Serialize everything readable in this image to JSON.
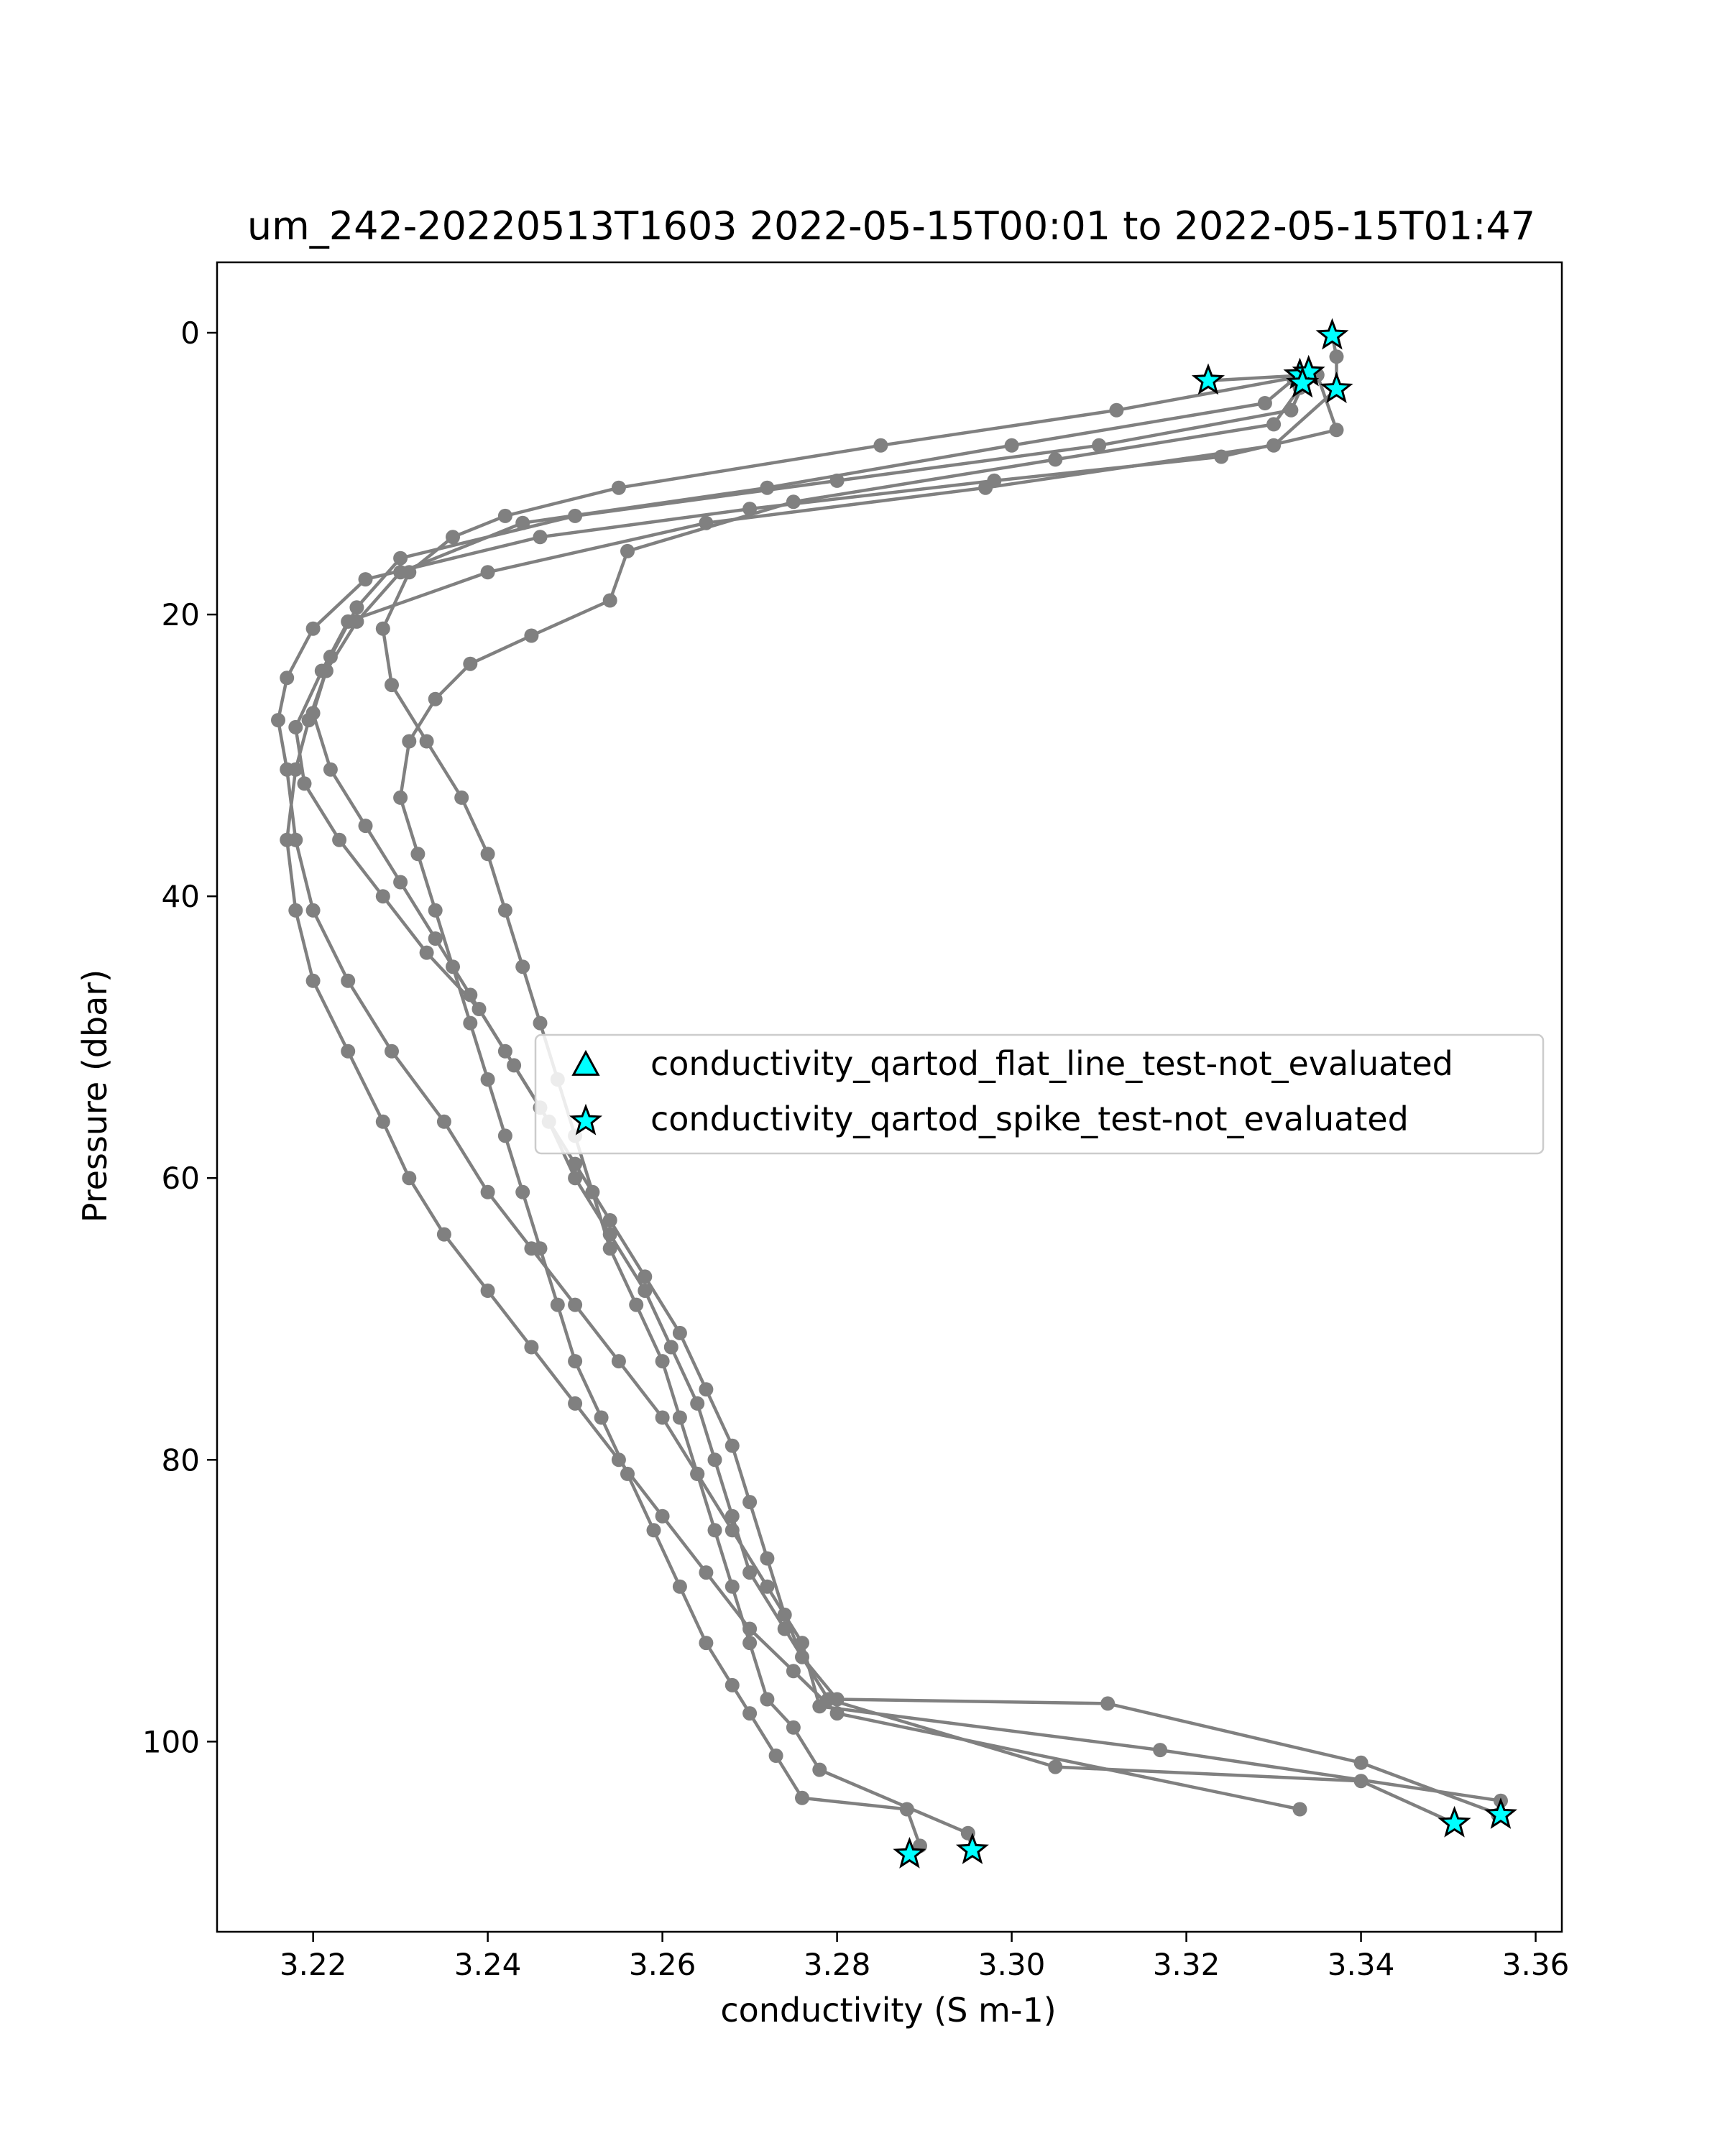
{
  "chart_data": {
    "type": "line",
    "title": "um_242-20220513T1603 2022-05-15T00:01 to 2022-05-15T01:47",
    "xlabel": "conductivity (S m-1)",
    "ylabel": "Pressure (dbar)",
    "xlim": [
      3.209,
      3.363
    ],
    "ylim": [
      113.5,
      -5.0
    ],
    "y_inverted": true,
    "grid": false,
    "x_ticks": [
      3.22,
      3.24,
      3.26,
      3.28,
      3.3,
      3.32,
      3.34,
      3.36
    ],
    "x_tick_labels": [
      "3.22",
      "3.24",
      "3.26",
      "3.28",
      "3.30",
      "3.32",
      "3.34",
      "3.36"
    ],
    "y_ticks": [
      0,
      20,
      40,
      60,
      80,
      100
    ],
    "y_tick_labels": [
      "0",
      "20",
      "40",
      "60",
      "80",
      "100"
    ],
    "line_color": "#808080",
    "flag_fill": "#00ffff",
    "legend_position": "center-right",
    "legend": [
      {
        "marker": "triangle",
        "label": "conductivity_qartod_flat_line_test-not_evaluated"
      },
      {
        "marker": "star",
        "label": "conductivity_qartod_spike_test-not_evaluated"
      }
    ],
    "series": [
      {
        "x": [
          3.3367,
          3.3372,
          3.3372,
          3.33,
          3.297,
          3.265,
          3.24,
          3.224,
          3.221,
          3.218,
          3.219,
          3.223,
          3.228,
          3.233,
          3.239,
          3.243,
          3.247,
          3.25,
          3.254,
          3.258,
          3.261,
          3.264,
          3.266,
          3.268,
          3.27,
          3.274,
          3.279,
          3.305,
          3.34,
          3.3507
        ],
        "y": [
          0.2,
          1.7,
          4.0,
          8.0,
          11.0,
          13.5,
          17.0,
          20.5,
          24.0,
          28.0,
          32.0,
          36.0,
          40.0,
          44.0,
          48.0,
          52.0,
          56.0,
          60.0,
          64.0,
          68.0,
          72.0,
          76.0,
          80.0,
          84.0,
          88.0,
          92.0,
          97.0,
          101.8,
          102.8,
          105.8
        ]
      },
      {
        "x": [
          3.335,
          3.3372,
          3.324,
          3.298,
          3.27,
          3.246,
          3.226,
          3.22,
          3.217,
          3.216,
          3.217,
          3.218,
          3.22,
          3.224,
          3.229,
          3.235,
          3.24,
          3.245,
          3.25,
          3.255,
          3.26,
          3.264,
          3.268,
          3.272,
          3.276,
          3.278,
          3.317,
          3.356,
          3.3557
        ],
        "y": [
          3.0,
          6.9,
          8.8,
          10.5,
          12.5,
          14.5,
          17.5,
          21.0,
          24.5,
          27.5,
          31.0,
          36.0,
          41.0,
          46.0,
          51.0,
          56.0,
          61.0,
          65.0,
          69.0,
          73.0,
          77.0,
          81.0,
          85.0,
          89.0,
          93.0,
          97.5,
          100.6,
          104.2,
          105.2
        ]
      },
      {
        "x": [
          3.3323,
          3.329,
          3.3,
          3.272,
          3.244,
          3.23,
          3.225,
          3.2215,
          3.2195,
          3.218,
          3.217,
          3.218,
          3.22,
          3.224,
          3.228,
          3.231,
          3.235,
          3.24,
          3.245,
          3.25,
          3.255,
          3.26,
          3.265,
          3.27,
          3.275,
          3.28,
          3.333
        ],
        "y": [
          3.3,
          5.0,
          8.0,
          11.0,
          13.5,
          17.0,
          20.5,
          24.0,
          27.5,
          31.0,
          36.0,
          41.0,
          46.0,
          51.0,
          56.0,
          60.0,
          64.0,
          68.0,
          72.0,
          76.0,
          80.0,
          84.0,
          88.0,
          92.0,
          95.0,
          98.0,
          104.8
        ]
      },
      {
        "x": [
          3.334,
          3.332,
          3.31,
          3.28,
          3.25,
          3.23,
          3.225,
          3.222,
          3.22,
          3.222,
          3.226,
          3.23,
          3.234,
          3.238,
          3.242,
          3.246,
          3.25,
          3.254,
          3.258,
          3.262,
          3.265,
          3.268,
          3.27,
          3.272,
          3.274,
          3.276,
          3.28,
          3.311,
          3.34,
          3.356
        ],
        "y": [
          2.8,
          5.5,
          8.0,
          10.5,
          13.0,
          16.0,
          19.5,
          23.0,
          27.0,
          31.0,
          35.0,
          39.0,
          43.0,
          47.0,
          51.0,
          55.0,
          59.0,
          63.0,
          67.0,
          71.0,
          75.0,
          79.0,
          83.0,
          87.0,
          91.0,
          94.0,
          97.0,
          97.3,
          101.5,
          105.2
        ]
      },
      {
        "x": [
          3.3225,
          3.334,
          3.312,
          3.285,
          3.255,
          3.242,
          3.236,
          3.231,
          3.228,
          3.229,
          3.233,
          3.237,
          3.24,
          3.242,
          3.244,
          3.246,
          3.248,
          3.25,
          3.252,
          3.254,
          3.257,
          3.26,
          3.262,
          3.264,
          3.266,
          3.268,
          3.27,
          3.272,
          3.275,
          3.278,
          3.295,
          3.2955
        ],
        "y": [
          3.4,
          3.0,
          5.5,
          8.0,
          11.0,
          13.0,
          14.5,
          17.0,
          21.0,
          25.0,
          29.0,
          33.0,
          37.0,
          41.0,
          45.0,
          49.0,
          53.0,
          57.0,
          61.0,
          65.0,
          69.0,
          73.0,
          77.0,
          81.0,
          85.0,
          89.0,
          93.0,
          97.0,
          99.0,
          102.0,
          106.5,
          107.7
        ]
      },
      {
        "x": [
          3.333,
          3.33,
          3.305,
          3.275,
          3.256,
          3.254,
          3.245,
          3.238,
          3.234,
          3.231,
          3.23,
          3.232,
          3.234,
          3.236,
          3.238,
          3.24,
          3.242,
          3.244,
          3.246,
          3.248,
          3.25,
          3.253,
          3.256,
          3.259,
          3.262,
          3.265,
          3.268,
          3.27,
          3.273,
          3.276,
          3.288,
          3.2895,
          3.2883
        ],
        "y": [
          3.9,
          6.5,
          9.0,
          12.0,
          15.5,
          19.0,
          21.5,
          23.5,
          26.0,
          29.0,
          33.0,
          37.0,
          41.0,
          45.0,
          49.0,
          53.0,
          57.0,
          61.0,
          65.0,
          69.0,
          73.0,
          77.0,
          81.0,
          85.0,
          89.0,
          93.0,
          96.0,
          98.0,
          101.0,
          104.0,
          104.8,
          107.4,
          108.0
        ]
      }
    ],
    "flags_spike_not_evaluated": {
      "x": [
        3.3367,
        3.3225,
        3.333,
        3.334,
        3.3372,
        3.3333,
        3.3507,
        3.356,
        3.2883,
        3.2955
      ],
      "y": [
        0.2,
        3.4,
        3.0,
        2.8,
        4.0,
        3.6,
        105.8,
        105.2,
        108.0,
        107.7
      ]
    }
  }
}
